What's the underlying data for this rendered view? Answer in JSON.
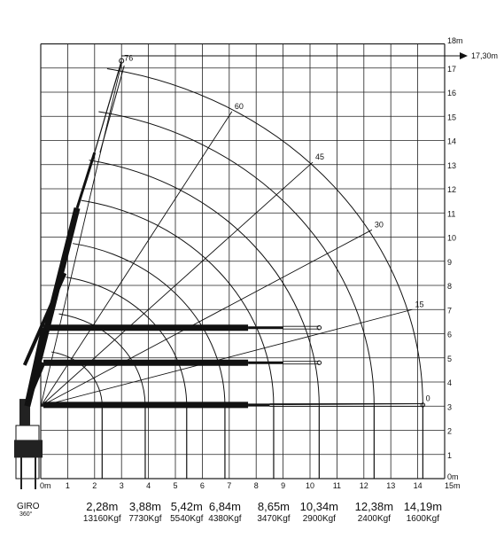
{
  "diagram": {
    "x_unit_start": "0m",
    "x_unit_end": "15m",
    "x_ticks": [
      "1",
      "2",
      "3",
      "4",
      "5",
      "6",
      "7",
      "8",
      "9",
      "10",
      "11",
      "12",
      "13",
      "14"
    ],
    "y_unit_start": "0m",
    "y_unit_end": "18m",
    "y_ticks": [
      "1",
      "2",
      "3",
      "4",
      "5",
      "6",
      "7",
      "8",
      "9",
      "10",
      "11",
      "12",
      "13",
      "14",
      "15",
      "16",
      "17"
    ],
    "max_height_label": "17,30m",
    "boom_angle_labels": [
      {
        "angle": "76",
        "x": 3.0,
        "y": 17.2
      },
      {
        "angle": "60",
        "x": 7.1,
        "y": 15.2
      },
      {
        "angle": "45",
        "x": 10.1,
        "y": 13.1
      },
      {
        "angle": "30",
        "x": 12.3,
        "y": 10.3
      },
      {
        "angle": "15",
        "x": 13.8,
        "y": 7.0
      },
      {
        "angle": "0",
        "x": 14.2,
        "y": 3.1
      }
    ],
    "rotation_label": "GIRO",
    "rotation_value": "360°",
    "load_chart": [
      {
        "reach": "2,28m",
        "load": "13160Kgf"
      },
      {
        "reach": "3,88m",
        "load": "7730Kgf"
      },
      {
        "reach": "5,42m",
        "load": "5540Kgf"
      },
      {
        "reach": "6,84m",
        "load": "4380Kgf"
      },
      {
        "reach": "8,65m",
        "load": "3470Kgf"
      },
      {
        "reach": "10,34m",
        "load": "2900Kgf"
      },
      {
        "reach": "12,38m",
        "load": "2400Kgf"
      },
      {
        "reach": "14,19m",
        "load": "1600Kgf"
      }
    ],
    "load_line_reach_m": [
      2.28,
      3.88,
      5.42,
      6.84,
      8.65,
      10.34,
      12.38,
      14.19
    ],
    "outreach_arcs_m": [
      2.28,
      3.88,
      5.42,
      6.84,
      8.65,
      10.34,
      12.38,
      14.19
    ]
  }
}
